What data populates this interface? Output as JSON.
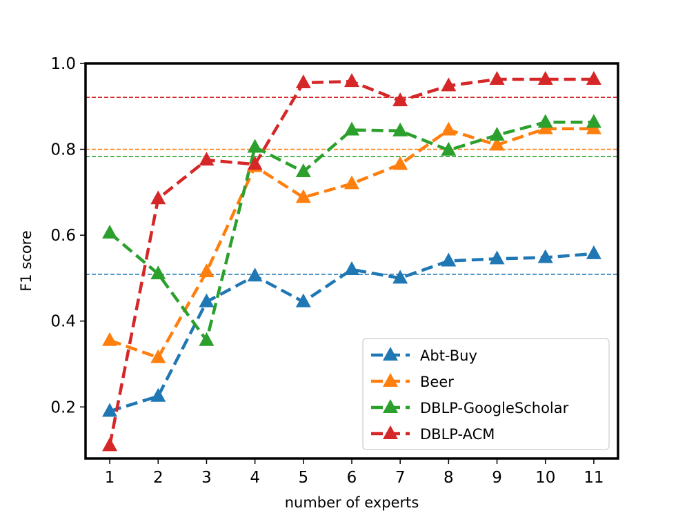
{
  "chart_data": {
    "type": "line",
    "title": "",
    "xlabel": "number of experts",
    "ylabel": "F1 score",
    "x": [
      1,
      2,
      3,
      4,
      5,
      6,
      7,
      8,
      9,
      10,
      11
    ],
    "xlim": [
      0.5,
      11.5
    ],
    "ylim": [
      0.08,
      1.0
    ],
    "yticks": [
      0.2,
      0.4,
      0.6,
      0.8,
      1.0
    ],
    "ytick_labels": [
      "0.2",
      "0.4",
      "0.6",
      "0.8",
      "1.0"
    ],
    "xtick_labels": [
      "1",
      "2",
      "3",
      "4",
      "5",
      "6",
      "7",
      "8",
      "9",
      "10",
      "11"
    ],
    "grid": false,
    "legend_position": "lower-right",
    "series": [
      {
        "name": "Abt-Buy",
        "color": "#1f77b4",
        "values": [
          0.19,
          0.225,
          0.445,
          0.505,
          0.445,
          0.52,
          0.5,
          0.54,
          0.545,
          0.548,
          0.557
        ],
        "baseline": 0.509
      },
      {
        "name": "Beer",
        "color": "#ff7f0e",
        "values": [
          0.355,
          0.315,
          0.515,
          0.76,
          0.688,
          0.72,
          0.765,
          0.845,
          0.81,
          0.848,
          0.848
        ],
        "baseline": 0.8
      },
      {
        "name": "DBLP-GoogleScholar",
        "color": "#2ca02c",
        "values": [
          0.605,
          0.51,
          0.355,
          0.805,
          0.748,
          0.845,
          0.843,
          0.798,
          0.833,
          0.863,
          0.863
        ],
        "baseline": 0.783
      },
      {
        "name": "DBLP-ACM",
        "color": "#d62728",
        "values": [
          0.11,
          0.685,
          0.775,
          0.765,
          0.955,
          0.958,
          0.913,
          0.948,
          0.963,
          0.963,
          0.963
        ],
        "baseline": 0.921
      }
    ]
  }
}
